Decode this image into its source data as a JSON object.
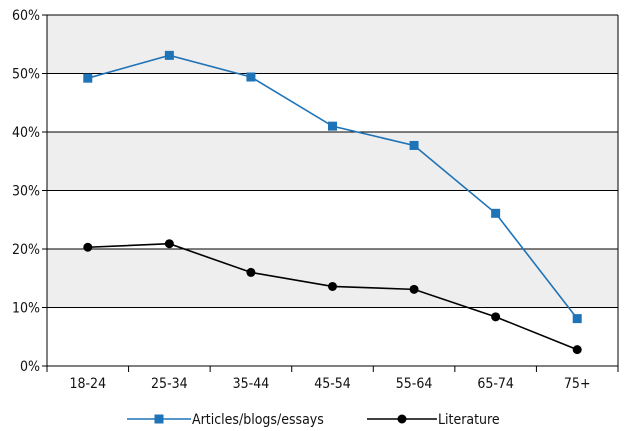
{
  "chart_data": {
    "type": "line",
    "title": "",
    "xlabel": "",
    "ylabel": "",
    "categories": [
      "18-24",
      "25-34",
      "35-44",
      "45-54",
      "55-64",
      "65-74",
      "75+"
    ],
    "ylim": [
      0,
      60
    ],
    "yticks": [
      0,
      10,
      20,
      30,
      40,
      50,
      60
    ],
    "ytick_labels": [
      "0%",
      "10%",
      "20%",
      "30%",
      "40%",
      "50%",
      "60%"
    ],
    "grid": "horizontal",
    "band_fill": "#eeeeee",
    "legend_position": "bottom",
    "series": [
      {
        "name": "Articles/blogs/essays",
        "values": [
          49.2,
          53.1,
          49.4,
          41.0,
          37.7,
          26.1,
          8.1
        ],
        "color": "#1f73b7",
        "marker": "square"
      },
      {
        "name": "Literature",
        "values": [
          20.3,
          20.9,
          16.0,
          13.6,
          13.1,
          8.4,
          2.8
        ],
        "color": "#000000",
        "marker": "circle"
      }
    ]
  }
}
